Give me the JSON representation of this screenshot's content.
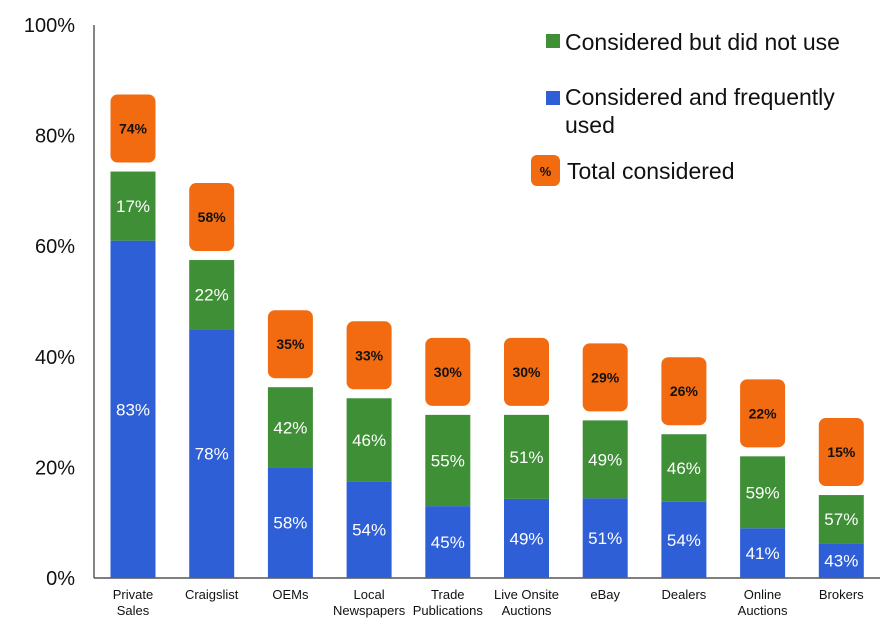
{
  "chart_data": {
    "type": "bar",
    "stacked": true,
    "title": "",
    "xlabel": "",
    "ylabel": "",
    "ylim": [
      0,
      100
    ],
    "y_ticks": [
      "0%",
      "20%",
      "40%",
      "60%",
      "80%",
      "100%"
    ],
    "categories": [
      [
        "Private",
        "Sales"
      ],
      [
        "Craigslist"
      ],
      [
        "OEMs"
      ],
      [
        "Local",
        "Newspapers"
      ],
      [
        "Trade",
        "Publications"
      ],
      [
        "Live Onsite",
        "Auctions"
      ],
      [
        "eBay"
      ],
      [
        "Dealers"
      ],
      [
        "Online",
        "Auctions"
      ],
      [
        "Brokers"
      ]
    ],
    "total_considered": [
      74,
      58,
      35,
      33,
      30,
      30,
      29,
      26,
      22,
      15
    ],
    "total_labels": [
      "74%",
      "58%",
      "35%",
      "33%",
      "30%",
      "30%",
      "29%",
      "26%",
      "22%",
      "15%"
    ],
    "series": [
      {
        "name": "Considered and frequently used",
        "color": "#2f5fd6",
        "share_of_total_labels": [
          "83%",
          "78%",
          "58%",
          "54%",
          "45%",
          "49%",
          "51%",
          "54%",
          "41%",
          "43%"
        ],
        "values": [
          61.0,
          45.0,
          20.0,
          17.5,
          13.0,
          14.3,
          14.4,
          13.8,
          9.0,
          6.3
        ]
      },
      {
        "name": "Considered but did not use",
        "color": "#3f8f36",
        "share_of_total_labels": [
          "17%",
          "22%",
          "42%",
          "46%",
          "55%",
          "51%",
          "49%",
          "46%",
          "59%",
          "57%"
        ],
        "values": [
          12.5,
          12.5,
          14.5,
          15.0,
          16.5,
          15.2,
          14.1,
          12.2,
          13.0,
          8.7
        ]
      }
    ],
    "legend": {
      "position": "top-right",
      "entries": [
        {
          "label": "Considered but did not use",
          "color": "#3f8f36"
        },
        {
          "label": "Considered and frequently used",
          "color": "#2f5fd6",
          "lines": [
            "Considered and frequently",
            "used"
          ]
        },
        {
          "label": "Total considered",
          "color": "#f26b10",
          "marker_text": "%"
        }
      ]
    },
    "total_box_color": "#f26b10",
    "grid": false
  }
}
